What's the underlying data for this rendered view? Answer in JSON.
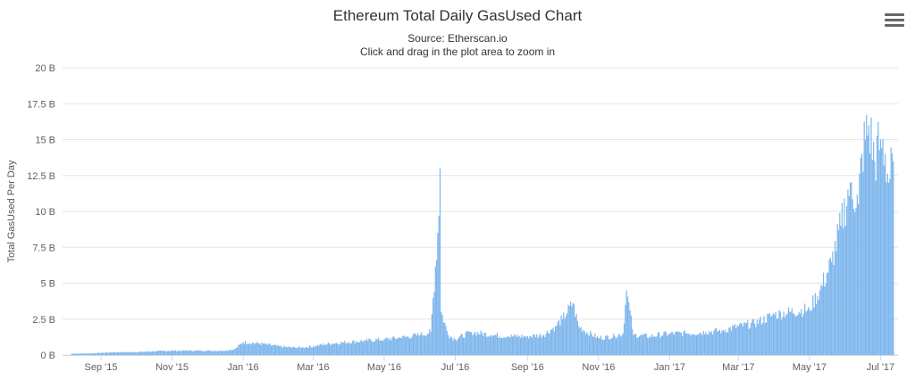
{
  "header": {
    "title": "Ethereum Total Daily GasUsed Chart",
    "source": "Source: Etherscan.io",
    "hint": "Click and drag in the plot area to zoom in",
    "menu_icon": "hamburger-menu-icon"
  },
  "chart_data": {
    "type": "bar",
    "title": "Ethereum Total Daily GasUsed Chart",
    "subtitle": "Source: Etherscan.io",
    "ylabel": "Total GasUsed Per Day",
    "xlabel": "",
    "ylim": [
      0,
      20
    ],
    "y_unit": "B",
    "y_ticks": [
      "0 B",
      "2.5 B",
      "5 B",
      "7.5 B",
      "10 B",
      "12.5 B",
      "15 B",
      "17.5 B",
      "20 B"
    ],
    "x_ticks": [
      "Sep '15",
      "Nov '15",
      "Jan '16",
      "Mar '16",
      "May '16",
      "Jul '16",
      "Sep '16",
      "Nov '16",
      "Jan '17",
      "Mar '17",
      "May '17",
      "Jul '17"
    ],
    "grid": true,
    "legend": "none",
    "bar_color": "#7cb5ec",
    "x": [
      "2015-08-07",
      "2015-08-20",
      "2015-09-01",
      "2015-09-15",
      "2015-10-01",
      "2015-10-15",
      "2015-11-01",
      "2015-11-15",
      "2015-12-01",
      "2015-12-15",
      "2015-12-25",
      "2016-01-01",
      "2016-01-15",
      "2016-02-01",
      "2016-02-15",
      "2016-03-01",
      "2016-03-15",
      "2016-04-01",
      "2016-04-15",
      "2016-05-01",
      "2016-05-15",
      "2016-06-01",
      "2016-06-10",
      "2016-06-17",
      "2016-06-18",
      "2016-06-19",
      "2016-06-25",
      "2016-07-01",
      "2016-07-15",
      "2016-08-01",
      "2016-08-15",
      "2016-09-01",
      "2016-09-15",
      "2016-09-25",
      "2016-10-01",
      "2016-10-10",
      "2016-10-15",
      "2016-10-22",
      "2016-11-01",
      "2016-11-15",
      "2016-11-22",
      "2016-11-25",
      "2016-12-01",
      "2016-12-15",
      "2017-01-01",
      "2017-01-15",
      "2017-02-01",
      "2017-02-15",
      "2017-03-01",
      "2017-03-15",
      "2017-04-01",
      "2017-04-15",
      "2017-05-01",
      "2017-05-10",
      "2017-05-20",
      "2017-05-28",
      "2017-06-05",
      "2017-06-12",
      "2017-06-15",
      "2017-06-18",
      "2017-06-21",
      "2017-06-26",
      "2017-07-01",
      "2017-07-05",
      "2017-07-08",
      "2017-07-12"
    ],
    "values": [
      0.1,
      0.1,
      0.15,
      0.2,
      0.2,
      0.25,
      0.3,
      0.3,
      0.3,
      0.3,
      0.4,
      0.9,
      0.8,
      0.6,
      0.5,
      0.6,
      0.8,
      0.9,
      1.0,
      1.1,
      1.2,
      1.4,
      1.6,
      9.7,
      13.0,
      3.0,
      1.4,
      1.1,
      1.6,
      1.4,
      1.3,
      1.3,
      1.4,
      2.0,
      2.5,
      3.6,
      2.0,
      1.6,
      1.2,
      1.3,
      1.5,
      4.5,
      1.4,
      1.3,
      1.5,
      1.5,
      1.6,
      1.7,
      2.0,
      2.2,
      2.8,
      3.0,
      3.2,
      4.5,
      6.5,
      9.0,
      12.0,
      10.5,
      14.0,
      15.0,
      16.0,
      13.5,
      15.0,
      14.0,
      12.0,
      13.5
    ]
  }
}
